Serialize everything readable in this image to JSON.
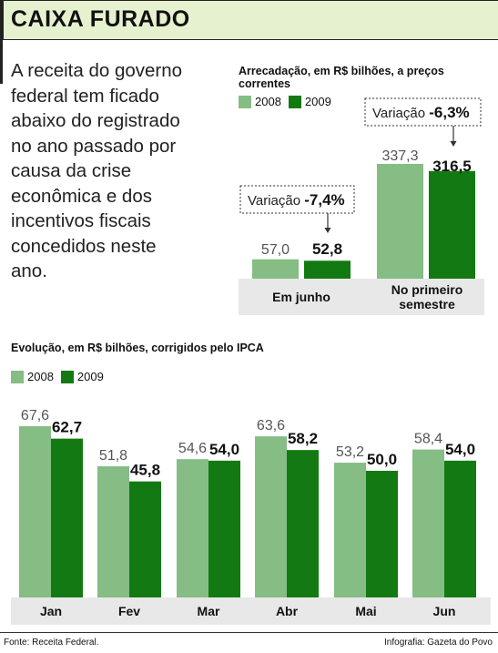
{
  "header": {
    "title": "CAIXA FURADO"
  },
  "intro": {
    "text": "A receita do governo federal tem ficado abaixo do registrado no ano passado por causa da crise econômica e dos incentivos fiscais concedidos neste ano."
  },
  "colors": {
    "y2008": "#85bd85",
    "y2009": "#137a13",
    "header_bg": "#e6f2cf",
    "panel_bg": "#e8e8e8"
  },
  "footer": {
    "source": "Fonte: Receita Federal.",
    "credit": "Infografia: Gazeta do Povo"
  },
  "chart_data": [
    {
      "type": "bar",
      "title": "Arrecadação, em R$ bilhões, a preços correntes",
      "categories": [
        "Em junho",
        "No primeiro semestre"
      ],
      "series": [
        {
          "name": "2008",
          "values": [
            57.0,
            337.3
          ],
          "labels": [
            "57,0",
            "337,3"
          ]
        },
        {
          "name": "2009",
          "values": [
            52.8,
            316.5
          ],
          "labels": [
            "52,8",
            "316,5"
          ]
        }
      ],
      "annotations": [
        {
          "prefix": "Variação",
          "value": "-7,4%"
        },
        {
          "prefix": "Variação",
          "value": "-6,3%"
        }
      ],
      "legend": "top-left"
    },
    {
      "type": "bar",
      "title": "Evolução, em R$ bilhões, corrigidos pelo IPCA",
      "categories": [
        "Jan",
        "Fev",
        "Mar",
        "Abr",
        "Mai",
        "Jun"
      ],
      "series": [
        {
          "name": "2008",
          "values": [
            67.6,
            51.8,
            54.6,
            63.6,
            53.2,
            58.4
          ],
          "labels": [
            "67,6",
            "51,8",
            "54,6",
            "63,6",
            "53,2",
            "58,4"
          ]
        },
        {
          "name": "2009",
          "values": [
            62.7,
            45.8,
            54.0,
            58.2,
            50.0,
            54.0
          ],
          "labels": [
            "62,7",
            "45,8",
            "54,0",
            "58,2",
            "50,0",
            "54,0"
          ]
        }
      ],
      "legend": "top-left"
    }
  ]
}
